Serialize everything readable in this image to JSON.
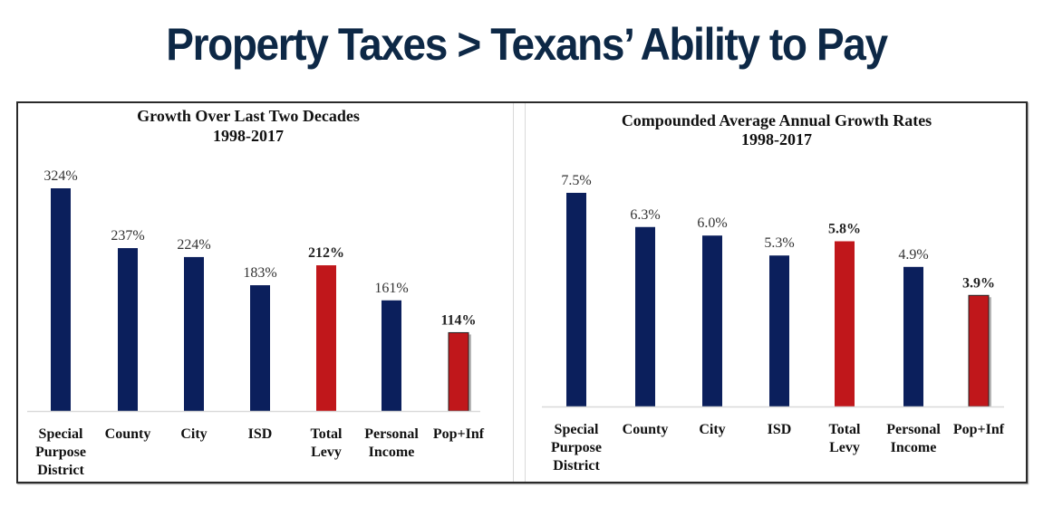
{
  "page": {
    "title": "Property Taxes > Texans’ Ability to Pay"
  },
  "colors": {
    "navy": "#0b1f5c",
    "red": "#c0171b",
    "title": "#0d2846",
    "baseline": "#d9d9d9"
  },
  "chart_data": [
    {
      "type": "bar",
      "title": "Growth Over Last Two Decades",
      "subtitle": "1998-2017",
      "categories": [
        [
          "Special",
          "Purpose",
          "District"
        ],
        [
          "County"
        ],
        [
          "City"
        ],
        [
          "ISD"
        ],
        [
          "Total",
          "Levy"
        ],
        [
          "Personal",
          "Income"
        ],
        [
          "Pop+Inf"
        ]
      ],
      "values": [
        324,
        237,
        224,
        183,
        212,
        161,
        114
      ],
      "labels": [
        "324%",
        "237%",
        "224%",
        "183%",
        "212%",
        "161%",
        "114%"
      ],
      "highlight": [
        false,
        false,
        false,
        false,
        true,
        false,
        true
      ],
      "bold_labels": [
        false,
        false,
        false,
        false,
        true,
        false,
        true
      ],
      "unit": "%",
      "xlabel": "",
      "ylabel": "",
      "ylim": [
        0,
        324
      ],
      "grid": false,
      "legend": "none"
    },
    {
      "type": "bar",
      "title": "Compounded Average Annual Growth Rates",
      "subtitle": "1998-2017",
      "categories": [
        [
          "Special",
          "Purpose",
          "District"
        ],
        [
          "County"
        ],
        [
          "City"
        ],
        [
          "ISD"
        ],
        [
          "Total",
          "Levy"
        ],
        [
          "Personal",
          "Income"
        ],
        [
          "Pop+Inf"
        ]
      ],
      "values": [
        7.5,
        6.3,
        6.0,
        5.3,
        5.8,
        4.9,
        3.9
      ],
      "labels": [
        "7.5%",
        "6.3%",
        "6.0%",
        "5.3%",
        "5.8%",
        "4.9%",
        "3.9%"
      ],
      "highlight": [
        false,
        false,
        false,
        false,
        true,
        false,
        true
      ],
      "bold_labels": [
        false,
        false,
        false,
        false,
        true,
        false,
        true
      ],
      "unit": "%",
      "xlabel": "",
      "ylabel": "",
      "ylim": [
        0,
        7.5
      ],
      "grid": false,
      "legend": "none"
    }
  ]
}
